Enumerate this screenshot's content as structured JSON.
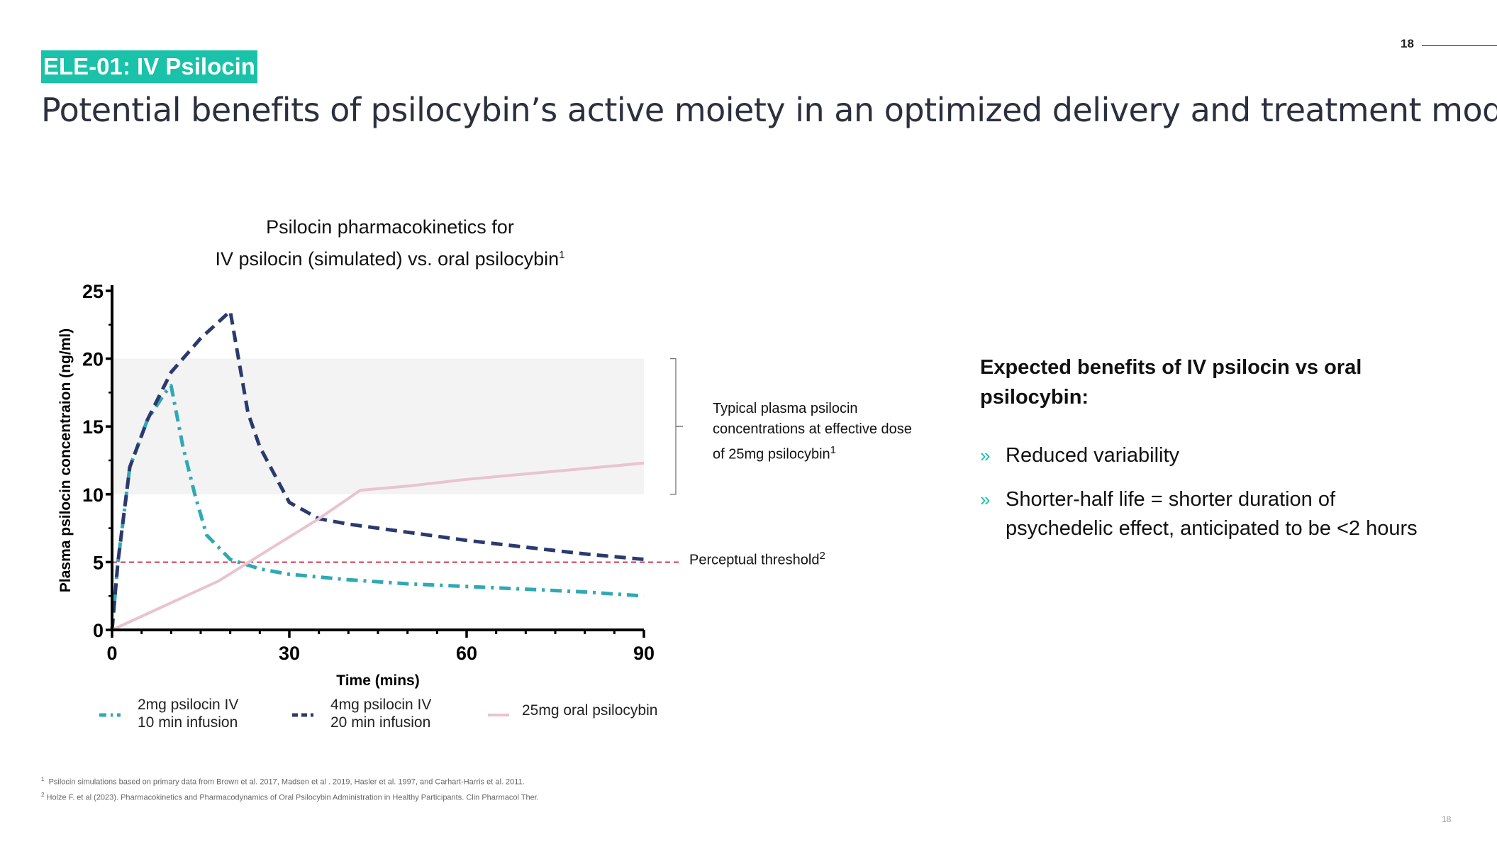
{
  "header": {
    "tag": "ELE-01: IV Psilocin",
    "title": "Potential benefits of psilocybin’s active moiety in an optimized delivery and treatment model",
    "page_number": "18"
  },
  "chart_title": {
    "line1": "Psilocin pharmacokinetics for",
    "line2": "IV psilocin (simulated) vs. oral psilocybin",
    "sup": "1"
  },
  "annotations": {
    "typical_band": "Typical plasma psilocin concentrations at effective dose of 25mg psilocybin",
    "typical_band_sup": "1",
    "threshold": "Perceptual threshold",
    "threshold_sup": "2"
  },
  "benefits": {
    "heading": "Expected benefits of IV psilocin vs oral psilocybin:",
    "marker": "»",
    "items": [
      "Reduced variability",
      "Shorter-half life = shorter duration of psychedelic effect, anticipated to be <2 hours"
    ]
  },
  "footnotes": [
    {
      "sup": "1",
      "text": "Psilocin simulations based on primary data from Brown et al. 2017, Madsen et al . 2019, Hasler et al. 1997, and Carhart-Harris et al. 2011."
    },
    {
      "sup": "2",
      "text": "Holze F. et al (2023). Pharmacokinetics and Pharmacodynamics of Oral Psilocybin Administration in Healthy Participants. Clin Pharmacol Ther."
    }
  ],
  "chart_data": {
    "type": "line",
    "xlabel": "Time (mins)",
    "ylabel": "Plasma psilocin concentraion (ng/ml)",
    "xlim": [
      0,
      90
    ],
    "ylim": [
      0,
      25
    ],
    "x_ticks": [
      0,
      30,
      60,
      90
    ],
    "y_ticks": [
      0,
      5,
      10,
      15,
      20,
      25
    ],
    "band": {
      "y0": 10,
      "y1": 20,
      "x0": 0,
      "x1": 90
    },
    "threshold": 5,
    "grid": false,
    "legend_position": "bottom",
    "series": [
      {
        "name": "2mg psilocin IV",
        "name_line2": "10 min infusion",
        "style": "dashdot",
        "color": "#2fa9b4",
        "x": [
          0,
          1,
          3,
          6,
          9,
          10,
          12,
          14,
          16,
          20,
          25,
          30,
          40,
          50,
          60,
          70,
          80,
          90
        ],
        "y": [
          0,
          5,
          12,
          15.5,
          17.5,
          18,
          13.5,
          10,
          7,
          5.2,
          4.5,
          4.1,
          3.7,
          3.4,
          3.2,
          3,
          2.8,
          2.5
        ]
      },
      {
        "name": "4mg psilocin IV",
        "name_line2": "20 min infusion",
        "style": "dashed",
        "color": "#2b3a6e",
        "x": [
          0,
          1,
          3,
          6,
          10,
          15,
          20,
          21,
          23,
          25,
          30,
          35,
          40,
          50,
          60,
          70,
          80,
          90
        ],
        "y": [
          0,
          5,
          12,
          15.5,
          19,
          21.5,
          23.5,
          21,
          16,
          13.5,
          9.4,
          8.2,
          7.8,
          7.2,
          6.6,
          6.1,
          5.6,
          5.2
        ]
      },
      {
        "name": "25mg oral psilocybin",
        "style": "solid",
        "color": "#e9c3d0",
        "x": [
          0,
          18,
          25,
          35,
          42,
          50,
          60,
          70,
          80,
          90
        ],
        "y": [
          0,
          3.6,
          5.5,
          8.2,
          10.3,
          10.6,
          11.1,
          11.5,
          11.9,
          12.3
        ]
      }
    ]
  }
}
